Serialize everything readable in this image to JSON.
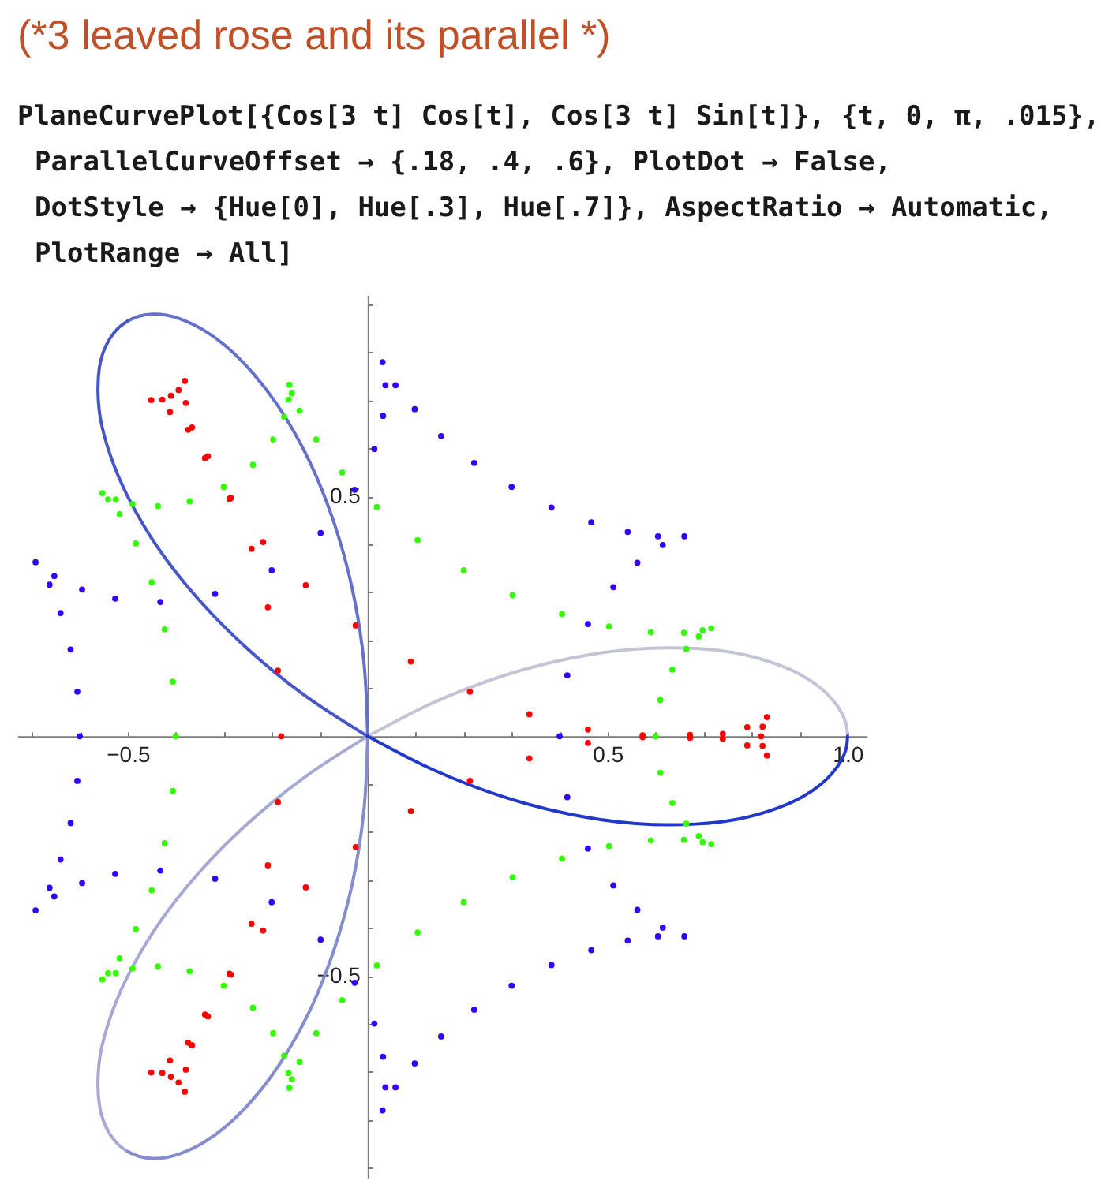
{
  "chart_data": {
    "type": "scatter",
    "title": "(*3 leaved rose and its parallel *)",
    "annotations": [
      "PlaneCurvePlot[{Cos[3 t] Cos[t], Cos[3 t] Sin[t]}, {t, 0, π, .015},",
      "ParallelCurveOffset → {.18, .4, .6}, PlotDot → False,",
      "DotStyle → {Hue[0], Hue[.3], Hue[.7]}, AspectRatio → Automatic,",
      "PlotRange → All]"
    ],
    "xlim": [
      -0.73,
      1.04
    ],
    "ylim": [
      -0.92,
      0.92
    ],
    "xticks": [
      {
        "value": -0.7,
        "label": null
      },
      {
        "value": -0.6,
        "label": null
      },
      {
        "value": -0.5,
        "label": "−0.5"
      },
      {
        "value": -0.4,
        "label": null
      },
      {
        "value": -0.3,
        "label": null
      },
      {
        "value": -0.2,
        "label": null
      },
      {
        "value": -0.1,
        "label": null
      },
      {
        "value": 0.1,
        "label": null
      },
      {
        "value": 0.2,
        "label": null
      },
      {
        "value": 0.3,
        "label": null
      },
      {
        "value": 0.4,
        "label": null
      },
      0.5,
      {
        "value": 0.6,
        "label": null
      },
      {
        "value": 0.7,
        "label": null
      },
      {
        "value": 0.8,
        "label": null
      },
      {
        "value": 0.9,
        "label": null
      },
      {
        "value": 1.0,
        "label": "1.0"
      }
    ],
    "yticks": [
      {
        "value": -0.9,
        "label": null
      },
      {
        "value": -0.8,
        "label": null
      },
      {
        "value": -0.7,
        "label": null
      },
      {
        "value": -0.6,
        "label": null
      },
      {
        "value": -0.5,
        "label": "−0.5"
      },
      {
        "value": -0.4,
        "label": null
      },
      {
        "value": -0.3,
        "label": null
      },
      {
        "value": -0.2,
        "label": null
      },
      {
        "value": -0.1,
        "label": null
      },
      {
        "value": 0.1,
        "label": null
      },
      {
        "value": 0.2,
        "label": null
      },
      {
        "value": 0.3,
        "label": null
      },
      {
        "value": 0.4,
        "label": null
      },
      0.5,
      {
        "value": 0.6,
        "label": null
      },
      {
        "value": 0.7,
        "label": null
      },
      {
        "value": 0.8,
        "label": null
      },
      {
        "value": 0.9,
        "label": null
      }
    ],
    "series": [
      {
        "type": "line",
        "color": "#c3c5d6",
        "line_style": "solid",
        "x": [
          1,
          0.997,
          0.986,
          0.969,
          0.946,
          0.905,
          0.853,
          0.775,
          0.683,
          0.559,
          0.424,
          0.282,
          0.139,
          0
        ],
        "values": [
          0,
          0.026,
          0.052,
          0.076,
          0.099,
          0.127,
          0.15,
          0.172,
          0.183,
          0.182,
          0.163,
          0.126,
          0.071,
          0
        ]
      },
      {
        "type": "line",
        "color": "#a5a9d3",
        "line_style": "solid",
        "x": [
          0,
          -0.131,
          -0.25,
          -0.353,
          -0.437,
          -0.5,
          -0.536,
          -0.557,
          -0.562,
          -0.559,
          -0.551,
          -0.538,
          -0.521,
          -0.5
        ],
        "values": [
          0,
          -0.085,
          -0.182,
          -0.286,
          -0.393,
          -0.5,
          -0.585,
          -0.663,
          -0.72,
          -0.769,
          -0.801,
          -0.828,
          -0.85,
          -0.866
        ]
      },
      {
        "type": "line",
        "color": "#868dcf",
        "line_style": "solid",
        "x": [
          -0.5,
          -0.476,
          -0.448,
          -0.419,
          -0.387,
          -0.342,
          -0.296,
          -0.239,
          -0.183,
          -0.122,
          -0.071,
          -0.032,
          -0.008,
          0
        ],
        "values": [
          -0.866,
          -0.876,
          -0.88,
          -0.878,
          -0.869,
          -0.847,
          -0.814,
          -0.757,
          -0.683,
          -0.575,
          -0.448,
          -0.307,
          -0.156,
          0
        ]
      },
      {
        "type": "line",
        "color": "#6671cc",
        "line_style": "solid",
        "x": [
          0,
          -0.008,
          -0.032,
          -0.071,
          -0.122,
          -0.183,
          -0.239,
          -0.296,
          -0.342,
          -0.387,
          -0.419,
          -0.448,
          -0.476,
          -0.5
        ],
        "values": [
          0,
          0.156,
          0.307,
          0.448,
          0.575,
          0.683,
          0.757,
          0.814,
          0.847,
          0.869,
          0.878,
          0.88,
          0.876,
          0.866
        ]
      },
      {
        "type": "line",
        "color": "#4656c8",
        "line_style": "solid",
        "x": [
          -0.5,
          -0.521,
          -0.538,
          -0.551,
          -0.559,
          -0.562,
          -0.557,
          -0.536,
          -0.5,
          -0.437,
          -0.353,
          -0.25,
          -0.131,
          0
        ],
        "values": [
          0.866,
          0.85,
          0.828,
          0.801,
          0.769,
          0.72,
          0.663,
          0.585,
          0.5,
          0.393,
          0.286,
          0.182,
          0.085,
          0
        ]
      },
      {
        "type": "line",
        "color": "#2238c8",
        "line_style": "solid",
        "x": [
          0,
          0.139,
          0.282,
          0.424,
          0.559,
          0.683,
          0.775,
          0.853,
          0.905,
          0.946,
          0.969,
          0.986,
          0.997,
          1
        ],
        "values": [
          0,
          -0.071,
          -0.126,
          -0.163,
          -0.182,
          -0.183,
          -0.172,
          -0.15,
          -0.127,
          -0.099,
          -0.076,
          -0.052,
          -0.026,
          0
        ]
      },
      {
        "color": "#ff0000",
        "marker": "circle",
        "x": [
          0.82,
          -0.41,
          -0.41,
          0.823,
          0.823,
          -0.394,
          -0.394,
          -0.428,
          -0.428,
          0.832,
          0.832,
          -0.381,
          -0.381,
          -0.451,
          -0.451,
          0.791,
          0.791,
          -0.379,
          -0.379,
          -0.412,
          -0.412,
          0.74,
          0.74,
          -0.366,
          -0.366,
          -0.374,
          -0.374,
          0.672,
          0.672,
          -0.339,
          -0.339,
          -0.333,
          -0.333,
          0.573,
          0.573,
          -0.288,
          -0.288,
          -0.285,
          -0.285,
          0.459,
          0.459,
          -0.218,
          -0.218,
          -0.242,
          -0.242,
          0.337,
          0.337,
          -0.129,
          -0.129,
          -0.208,
          -0.208,
          0.213,
          0.213,
          -0.025,
          -0.025,
          -0.187,
          -0.187,
          0.09,
          0.09,
          -0.18
        ],
        "values": [
          0,
          0.71,
          -0.71,
          -0.02,
          0.02,
          0.722,
          -0.722,
          0.702,
          -0.702,
          -0.04,
          0.04,
          0.741,
          -0.741,
          0.701,
          -0.701,
          -0.019,
          0.019,
          0.695,
          -0.695,
          0.676,
          -0.676,
          -0.005,
          0.005,
          0.644,
          -0.644,
          0.639,
          -0.639,
          0.003,
          -0.003,
          0.58,
          -0.58,
          0.584,
          -0.584,
          0.002,
          -0.002,
          0.495,
          -0.495,
          0.497,
          -0.497,
          -0.014,
          0.014,
          0.405,
          -0.405,
          0.391,
          -0.391,
          -0.046,
          0.046,
          0.315,
          -0.315,
          0.269,
          -0.269,
          -0.093,
          0.093,
          0.231,
          -0.231,
          0.137,
          -0.137,
          -0.156,
          0.156,
          0
        ]
      },
      {
        "color": "#33ff00",
        "marker": "circle",
        "x": [
          0.6,
          -0.3,
          -0.3,
          0.61,
          0.61,
          -0.239,
          -0.239,
          -0.371,
          -0.371,
          0.635,
          0.635,
          -0.197,
          -0.197,
          -0.437,
          -0.437,
          0.664,
          0.664,
          -0.174,
          -0.174,
          -0.49,
          -0.49,
          0.69,
          0.69,
          -0.165,
          -0.165,
          -0.525,
          -0.525,
          0.716,
          0.716,
          -0.163,
          -0.163,
          -0.553,
          -0.553,
          0.698,
          0.698,
          -0.158,
          -0.158,
          -0.541,
          -0.541,
          0.659,
          0.659,
          -0.142,
          -0.142,
          -0.517,
          -0.517,
          0.59,
          0.59,
          -0.107,
          -0.107,
          -0.483,
          -0.483,
          0.503,
          0.503,
          -0.053,
          -0.053,
          -0.45,
          -0.45,
          0.405,
          0.405,
          0.019,
          0.019,
          -0.423,
          -0.423,
          0.302,
          0.302,
          0.104,
          0.104,
          -0.406,
          -0.406,
          0.2,
          0.2,
          -0.4
        ],
        "values": [
          0,
          0.52,
          -0.52,
          -0.076,
          0.076,
          0.566,
          -0.566,
          0.49,
          -0.49,
          -0.139,
          0.139,
          0.619,
          -0.619,
          0.48,
          -0.48,
          -0.182,
          0.182,
          0.666,
          -0.666,
          0.484,
          -0.484,
          -0.208,
          0.208,
          0.702,
          -0.702,
          0.494,
          -0.494,
          -0.225,
          0.225,
          0.733,
          -0.733,
          0.507,
          -0.507,
          -0.221,
          0.221,
          0.715,
          -0.715,
          0.494,
          -0.494,
          -0.216,
          0.216,
          0.679,
          -0.679,
          0.463,
          -0.463,
          -0.217,
          0.217,
          0.619,
          -0.619,
          0.402,
          -0.402,
          -0.229,
          0.229,
          0.55,
          -0.55,
          0.321,
          -0.321,
          -0.255,
          0.255,
          0.478,
          -0.478,
          0.223,
          -0.223,
          -0.294,
          0.294,
          0.409,
          -0.409,
          0.114,
          -0.114,
          -0.346,
          0.346,
          0
        ]
      },
      {
        "color": "#3300ff",
        "marker": "circle",
        "x": [
          0.4,
          -0.2,
          -0.2,
          0.416,
          0.416,
          -0.098,
          -0.098,
          -0.318,
          -0.318,
          0.459,
          0.459,
          -0.027,
          -0.027,
          -0.432,
          -0.432,
          0.512,
          0.512,
          0.014,
          0.014,
          -0.526,
          -0.526,
          0.562,
          0.562,
          0.032,
          0.032,
          -0.595,
          -0.595,
          0.615,
          0.615,
          0.037,
          0.037,
          -0.653,
          -0.653,
          0.66,
          0.66,
          0.031,
          0.031,
          -0.692,
          -0.692,
          0.605,
          0.605,
          0.058,
          0.058,
          -0.663,
          -0.663,
          0.542,
          0.542,
          0.098,
          0.098,
          -0.64,
          -0.64,
          0.466,
          0.466,
          0.153,
          0.153,
          -0.619,
          -0.619,
          0.383,
          0.383,
          0.222,
          0.222,
          -0.605,
          -0.605,
          0.3,
          0.3,
          -0.6
        ],
        "values": [
          0,
          0.346,
          -0.346,
          -0.127,
          0.127,
          0.424,
          -0.424,
          0.297,
          -0.297,
          -0.234,
          0.234,
          0.514,
          -0.514,
          0.28,
          -0.28,
          -0.311,
          0.311,
          0.599,
          -0.599,
          0.287,
          -0.287,
          -0.362,
          0.362,
          0.668,
          -0.668,
          0.306,
          -0.306,
          -0.399,
          0.399,
          0.732,
          -0.732,
          0.334,
          -0.334,
          -0.417,
          0.417,
          0.78,
          -0.78,
          0.363,
          -0.363,
          -0.417,
          0.417,
          0.732,
          -0.732,
          0.316,
          -0.316,
          -0.426,
          0.426,
          0.682,
          -0.682,
          0.257,
          -0.257,
          -0.446,
          0.446,
          0.626,
          -0.626,
          0.181,
          -0.181,
          -0.477,
          0.477,
          0.57,
          -0.57,
          0.093,
          -0.093,
          -0.52,
          0.52,
          0
        ]
      }
    ]
  }
}
